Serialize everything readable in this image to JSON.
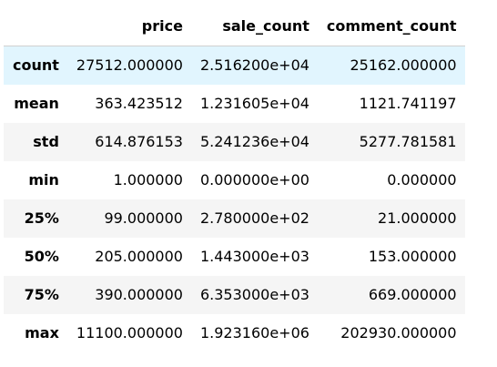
{
  "table": {
    "columns": [
      "",
      "price",
      "sale_count",
      "comment_count"
    ],
    "rows": [
      {
        "label": "count",
        "values": [
          "27512.000000",
          "2.516200e+04",
          "25162.000000"
        ]
      },
      {
        "label": "mean",
        "values": [
          "363.423512",
          "1.231605e+04",
          "1121.741197"
        ]
      },
      {
        "label": "std",
        "values": [
          "614.876153",
          "5.241236e+04",
          "5277.781581"
        ]
      },
      {
        "label": "min",
        "values": [
          "1.000000",
          "0.000000e+00",
          "0.000000"
        ]
      },
      {
        "label": "25%",
        "values": [
          "99.000000",
          "2.780000e+02",
          "21.000000"
        ]
      },
      {
        "label": "50%",
        "values": [
          "205.000000",
          "1.443000e+03",
          "153.000000"
        ]
      },
      {
        "label": "75%",
        "values": [
          "390.000000",
          "6.353000e+03",
          "669.000000"
        ]
      },
      {
        "label": "max",
        "values": [
          "11100.000000",
          "1.923160e+06",
          "202930.000000"
        ]
      }
    ],
    "hover_row": 0,
    "colors": {
      "hover_row_bg": "#e1f5fe",
      "striped_row_bg": "#f5f5f5",
      "plain_row_bg": "#ffffff",
      "header_border": "#d0d0d0"
    }
  }
}
